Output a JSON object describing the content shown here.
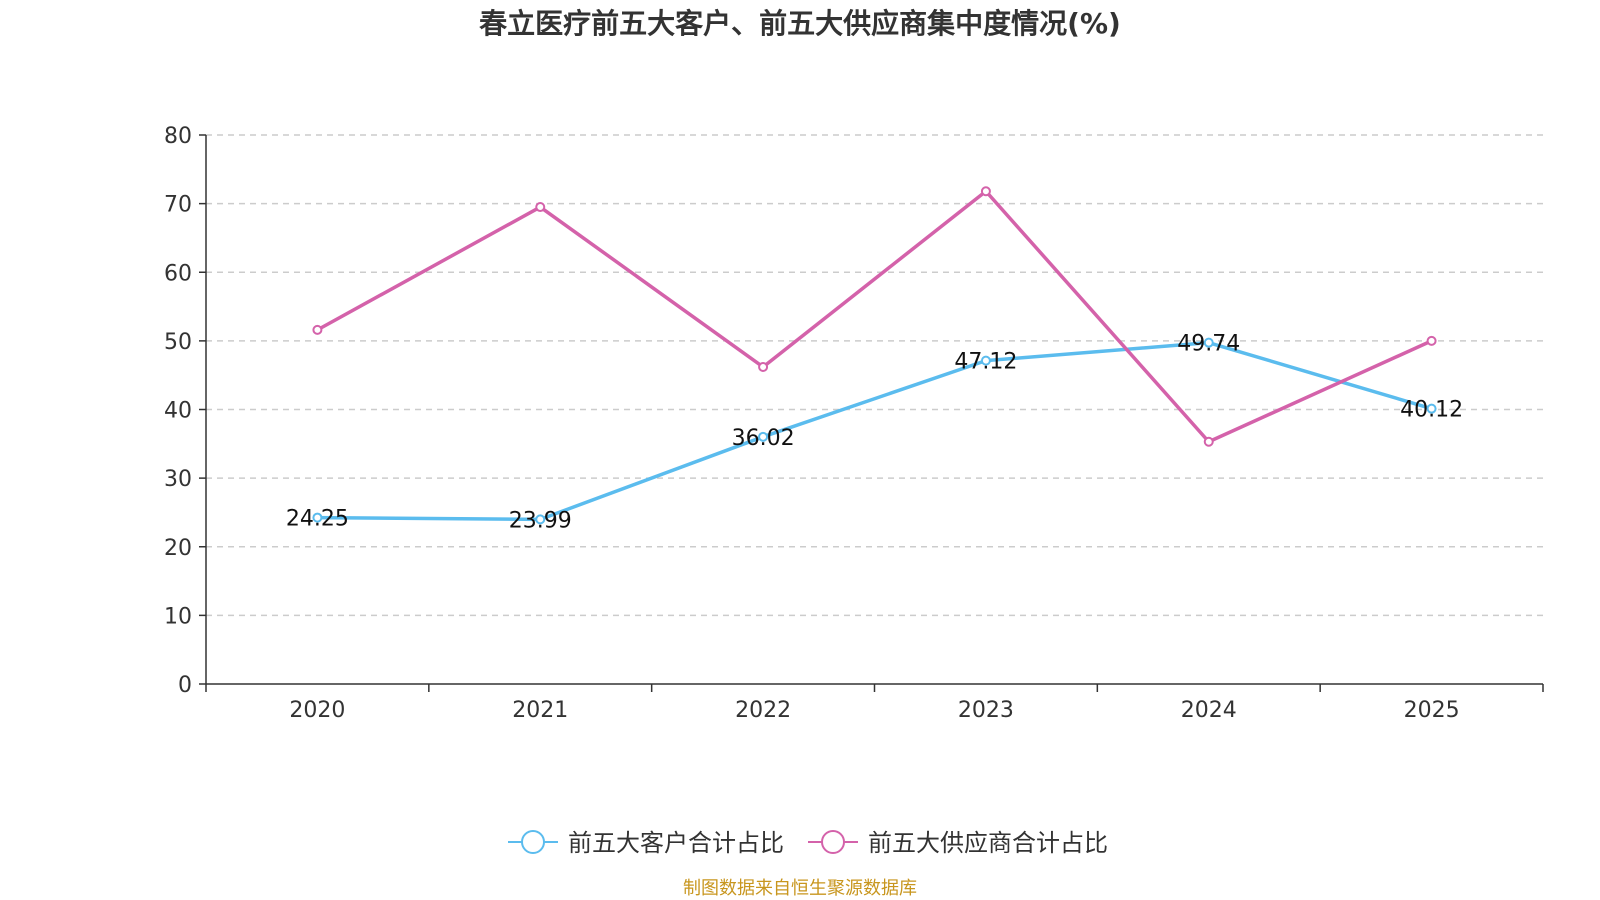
{
  "chart_data": {
    "type": "line",
    "title": "春立医疗前五大客户、前五大供应商集中度情况(%)",
    "categories": [
      "2020",
      "2021",
      "2022",
      "2023",
      "2024",
      "2025"
    ],
    "ylim": [
      0,
      80
    ],
    "yticks": [
      0,
      10,
      20,
      30,
      40,
      50,
      60,
      70,
      80
    ],
    "grid": true,
    "legend_position": "bottom-center",
    "series": [
      {
        "name": "前五大客户合计占比",
        "color": "#5bbcee",
        "values": [
          24.25,
          23.99,
          36.02,
          47.12,
          49.74,
          40.12
        ],
        "labels": [
          "24.25",
          "23.99",
          "36.02",
          "47.12",
          "49.74",
          "40.12"
        ]
      },
      {
        "name": "前五大供应商合计占比",
        "color": "#d462aa",
        "values": [
          51.6,
          69.5,
          46.2,
          71.8,
          35.3,
          50.0
        ]
      }
    ]
  },
  "source": {
    "text": "制图数据来自恒生聚源数据库",
    "color": "#c8961e"
  }
}
